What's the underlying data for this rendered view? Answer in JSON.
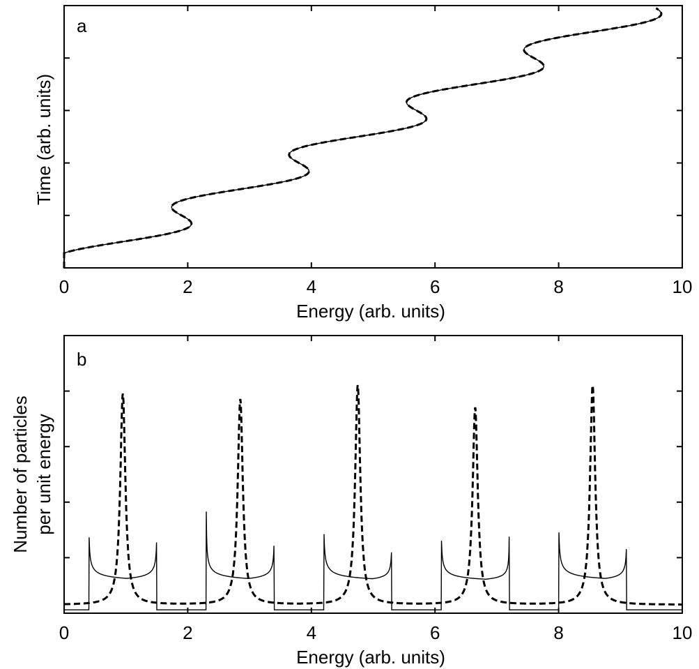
{
  "chart_data": [
    {
      "panel": "a",
      "type": "line",
      "xlabel": "Energy (arb. units)",
      "ylabel": "Time (arb. units)",
      "xlim": [
        0,
        10
      ],
      "ylim": [
        0,
        5
      ],
      "xticks": [
        0,
        2,
        4,
        6,
        8,
        10
      ],
      "yticks": [
        1,
        2,
        3,
        4
      ],
      "grid": false,
      "legend": "none",
      "series": [
        {
          "style": "solid",
          "description_points": [
            [
              0,
              0
            ],
            [
              0.4,
              0.74
            ],
            [
              1.5,
              0.26
            ],
            [
              2.3,
              1.74
            ],
            [
              3.4,
              1.26
            ],
            [
              4.2,
              2.74
            ],
            [
              5.3,
              2.26
            ],
            [
              6.1,
              3.74
            ],
            [
              7.2,
              3.26
            ],
            [
              8.0,
              4.74
            ],
            [
              9.1,
              4.26
            ],
            [
              10,
              4.95
            ]
          ]
        },
        {
          "style": "dashed",
          "description_points": [
            [
              0,
              0
            ],
            [
              0.95,
              0.5
            ],
            [
              2.85,
              1.5
            ],
            [
              4.75,
              2.5
            ],
            [
              6.65,
              3.5
            ],
            [
              8.55,
              4.5
            ],
            [
              10,
              4.95
            ]
          ]
        }
      ]
    },
    {
      "panel": "b",
      "type": "line",
      "xlabel": "Energy (arb. units)",
      "ylabel": [
        "Number of particles",
        "per unit energy"
      ],
      "xlim": [
        0,
        10
      ],
      "ylim": [
        0,
        1
      ],
      "xticks": [
        0,
        2,
        4,
        6,
        8,
        10
      ],
      "yticks": [
        0.2,
        0.4,
        0.6,
        0.8
      ],
      "grid": false,
      "legend": "none",
      "series": [
        {
          "style": "solid",
          "bands": [
            [
              0.4,
              1.5
            ],
            [
              2.3,
              3.4
            ],
            [
              4.2,
              5.3
            ],
            [
              6.1,
              7.2
            ],
            [
              8.0,
              9.1
            ]
          ],
          "edge_peaks": [
            [
              0.4,
              0.28
            ],
            [
              1.5,
              0.25
            ],
            [
              2.3,
              0.29
            ],
            [
              3.4,
              0.23
            ],
            [
              4.2,
              0.3
            ],
            [
              5.3,
              0.19
            ],
            [
              6.1,
              0.26
            ],
            [
              7.2,
              0.19
            ],
            [
              8.0,
              0.31
            ],
            [
              9.1,
              0.21
            ]
          ],
          "floor": 0.012
        },
        {
          "style": "dashed",
          "peaks": [
            [
              0.95,
              0.79
            ],
            [
              2.85,
              0.77
            ],
            [
              4.75,
              0.82
            ],
            [
              6.65,
              0.74
            ],
            [
              8.55,
              0.82
            ]
          ],
          "baseline": 0.03
        }
      ]
    }
  ],
  "panel_a": {
    "letter": "a",
    "xlabel": "Energy (arb. units)",
    "ylabel": "Time (arb. units)",
    "xtick_labels": [
      "0",
      "2",
      "4",
      "6",
      "8",
      "10"
    ]
  },
  "panel_b": {
    "letter": "b",
    "xlabel": "Energy (arb. units)",
    "ylabel_line1": "Number of particles",
    "ylabel_line2": "per unit energy",
    "xtick_labels": [
      "0",
      "2",
      "4",
      "6",
      "8",
      "10"
    ]
  }
}
